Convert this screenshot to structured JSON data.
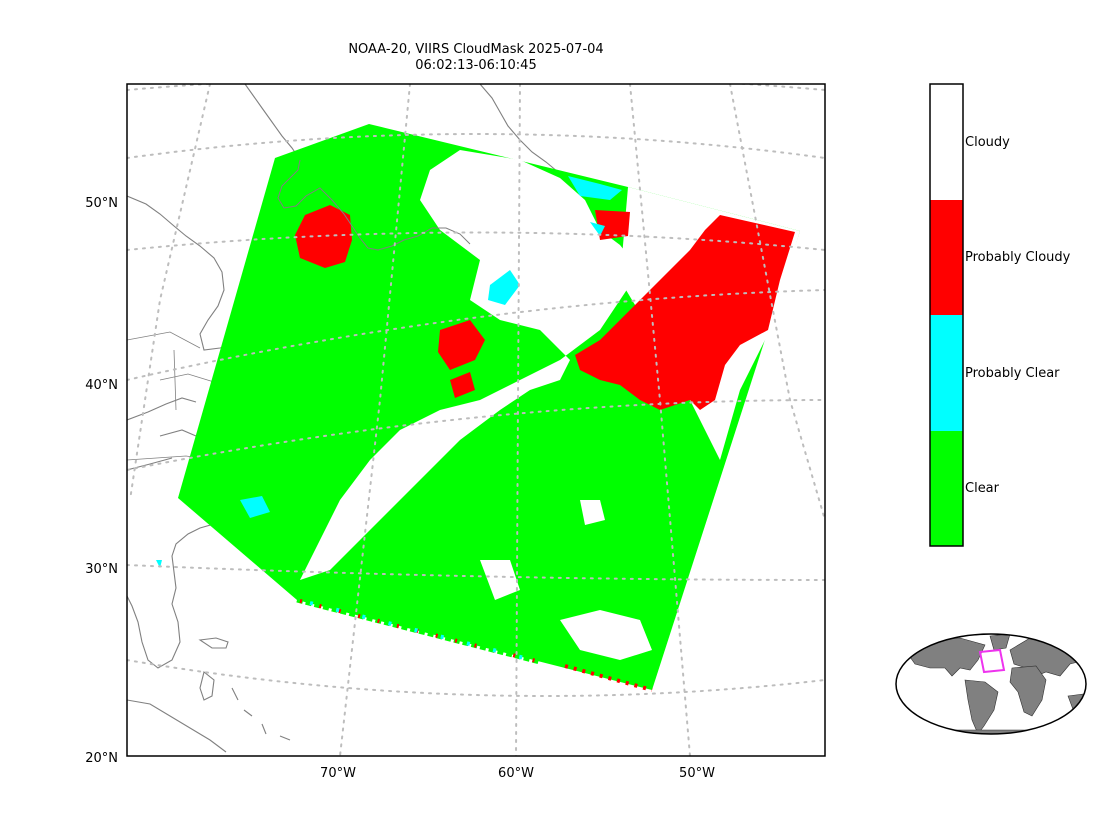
{
  "title": {
    "line1": "NOAA-20, VIIRS CloudMask 2025-07-04",
    "line2": "06:02:13-06:10:45"
  },
  "map": {
    "lat_labels": [
      "50°N",
      "40°N",
      "30°N",
      "20°N"
    ],
    "lon_labels": [
      "70°W",
      "60°W",
      "50°W"
    ],
    "gridline_style": "dotted",
    "colors": {
      "clear": "#00ff00",
      "probably_clear": "#00ffff",
      "probably_cloudy": "#ff0000",
      "cloudy": "#ffffff",
      "coastline": "#808080",
      "gridline": "#bdbdbd"
    }
  },
  "colorbar": {
    "categories": [
      {
        "label": "Cloudy",
        "color": "#ffffff"
      },
      {
        "label": "Probably Cloudy",
        "color": "#ff0000"
      },
      {
        "label": "Probably Clear",
        "color": "#00ffff"
      },
      {
        "label": "Clear",
        "color": "#00ff00"
      }
    ]
  },
  "inset": {
    "land_color": "#808080",
    "highlight_color": "#ee33ee"
  }
}
